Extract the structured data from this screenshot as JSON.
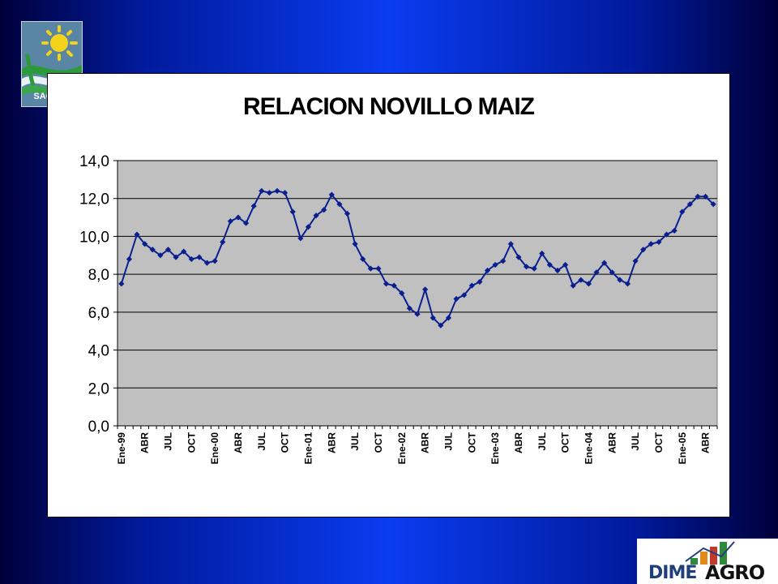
{
  "logos": {
    "sagpya": {
      "text": "SAGPyA",
      "icon": "sun-fields-icon"
    },
    "dimeagro": {
      "dime": "DIME",
      "agro": "AGRO",
      "icon": "bar-house-icon"
    }
  },
  "colors": {
    "series": "#0a1f8f",
    "plot_background": "#c0c0c0",
    "grid": "#000000"
  },
  "chart_data": {
    "type": "line",
    "title": "RELACION NOVILLO MAIZ",
    "xlabel": "",
    "ylabel": "",
    "ylim": [
      0,
      14
    ],
    "y_ticks": [
      "0,0",
      "2,0",
      "4,0",
      "6,0",
      "8,0",
      "10,0",
      "12,0",
      "14,0"
    ],
    "grid": true,
    "legend": "none",
    "x_tick_labels": [
      "Ene-99",
      "ABR",
      "JUL",
      "OCT",
      "Ene-00",
      "ABR",
      "JUL",
      "OCT",
      "Ene-01",
      "ABR",
      "JUL",
      "OCT",
      "Ene-02",
      "ABR",
      "JUL",
      "OCT",
      "Ene-03",
      "ABR",
      "JUL",
      "OCT",
      "Ene-04",
      "ABR",
      "JUL",
      "OCT",
      "Ene-05",
      "ABR"
    ],
    "series": [
      {
        "values": [
          7.5,
          8.8,
          10.1,
          9.6,
          9.3,
          9.0,
          9.3,
          8.9,
          9.2,
          8.8,
          8.9,
          8.6,
          8.7,
          9.7,
          10.8,
          11.0,
          10.7,
          11.6,
          12.4,
          12.3,
          12.4,
          12.3,
          11.3,
          9.9,
          10.5,
          11.1,
          11.4,
          12.2,
          11.7,
          11.2,
          9.6,
          8.8,
          8.3,
          8.3,
          7.5,
          7.4,
          7.0,
          6.2,
          5.9,
          7.2,
          5.7,
          5.3,
          5.7,
          6.7,
          6.9,
          7.4,
          7.6,
          8.2,
          8.5,
          8.7,
          9.6,
          8.9,
          8.4,
          8.3,
          9.1,
          8.5,
          8.2,
          8.5,
          7.4,
          7.7,
          7.5,
          8.1,
          8.6,
          8.1,
          7.7,
          7.5,
          8.7,
          9.3,
          9.6,
          9.7,
          10.1,
          10.3,
          11.3,
          11.7,
          12.1,
          12.1,
          11.7
        ]
      }
    ]
  }
}
